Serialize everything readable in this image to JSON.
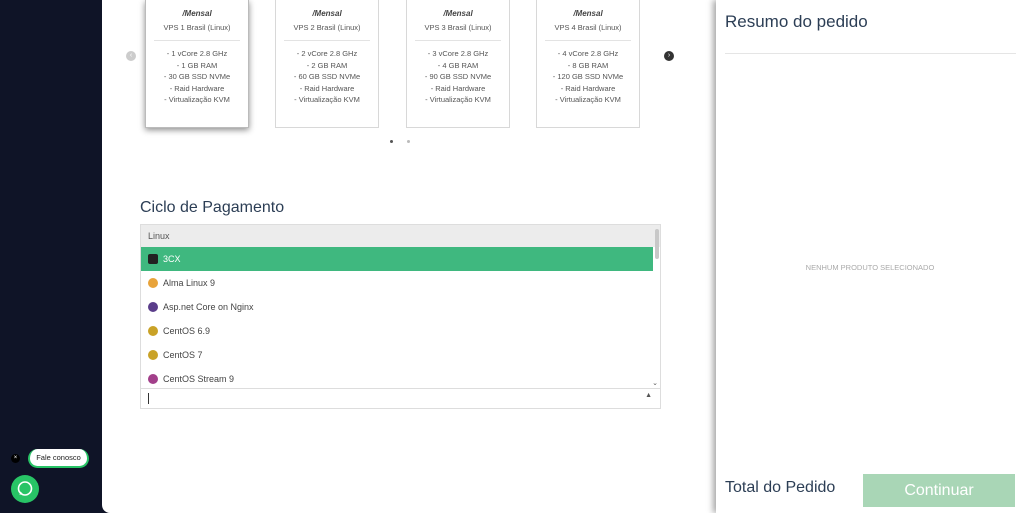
{
  "plans": [
    {
      "period": "/Mensal",
      "label": "VPS 1 Brasil (Linux)",
      "specs": [
        "- 1 vCore 2.8 GHz",
        "- 1 GB RAM",
        "- 30 GB SSD NVMe",
        "- Raid Hardware",
        "- Virtualização KVM"
      ]
    },
    {
      "period": "/Mensal",
      "label": "VPS 2 Brasil (Linux)",
      "specs": [
        "- 2 vCore 2.8 GHz",
        "- 2 GB RAM",
        "- 60 GB SSD NVMe",
        "- Raid Hardware",
        "- Virtualização KVM"
      ]
    },
    {
      "period": "/Mensal",
      "label": "VPS 3 Brasil (Linux)",
      "specs": [
        "- 3 vCore 2.8 GHz",
        "- 4 GB RAM",
        "- 90 GB SSD NVMe",
        "- Raid Hardware",
        "- Virtualização KVM"
      ]
    },
    {
      "period": "/Mensal",
      "label": "VPS 4 Brasil (Linux)",
      "specs": [
        "- 4 vCore 2.8 GHz",
        "- 8 GB RAM",
        "- 120 GB SSD NVMe",
        "- Raid Hardware",
        "- Virtualização KVM"
      ]
    }
  ],
  "billing": {
    "title": "Ciclo de Pagamento",
    "group": "Linux",
    "options": [
      "3CX",
      "Alma Linux 9",
      "Asp.net Core on Nginx",
      "CentOS 6.9",
      "CentOS 7",
      "CentOS Stream 9"
    ]
  },
  "summary": {
    "title": "Resumo do pedido",
    "empty": "NENHUM PRODUTO SELECIONADO",
    "total": "Total do Pedido",
    "button": "Continuar"
  },
  "chat": {
    "label": "Fale conosco"
  }
}
